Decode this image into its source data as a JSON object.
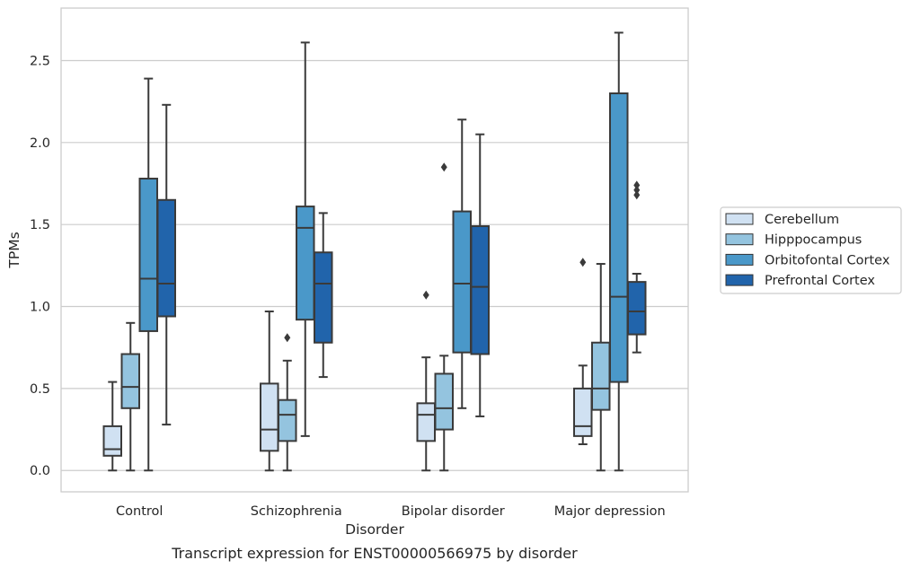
{
  "chart_data": {
    "type": "box",
    "ylabel": "TPMs",
    "xlabel": "Disorder",
    "caption": "Transcript expression for ENST00000566975 by disorder",
    "ylim": [
      -0.13,
      2.82
    ],
    "yticks": [
      "0.0",
      "0.5",
      "1.0",
      "1.5",
      "2.0",
      "2.5"
    ],
    "ytick_values": [
      0.0,
      0.5,
      1.0,
      1.5,
      2.0,
      2.5
    ],
    "grid": "horizontal",
    "legend_position": "right",
    "categories": [
      "Control",
      "Schizophrenia",
      "Bipolar disorder",
      "Major depression"
    ],
    "series": [
      {
        "name": "Cerebellum",
        "color": "#d0e1f2",
        "boxes": [
          {
            "whisker_low": 0.0,
            "q1": 0.09,
            "median": 0.13,
            "q3": 0.27,
            "whisker_high": 0.54,
            "outliers": []
          },
          {
            "whisker_low": 0.0,
            "q1": 0.12,
            "median": 0.25,
            "q3": 0.53,
            "whisker_high": 0.97,
            "outliers": []
          },
          {
            "whisker_low": 0.0,
            "q1": 0.18,
            "median": 0.34,
            "q3": 0.41,
            "whisker_high": 0.69,
            "outliers": [
              1.07
            ]
          },
          {
            "whisker_low": 0.16,
            "q1": 0.21,
            "median": 0.27,
            "q3": 0.5,
            "whisker_high": 0.64,
            "outliers": [
              1.27
            ]
          }
        ]
      },
      {
        "name": "Hipppocampus",
        "color": "#94c4df",
        "boxes": [
          {
            "whisker_low": 0.0,
            "q1": 0.38,
            "median": 0.51,
            "q3": 0.71,
            "whisker_high": 0.9,
            "outliers": []
          },
          {
            "whisker_low": 0.0,
            "q1": 0.18,
            "median": 0.34,
            "q3": 0.43,
            "whisker_high": 0.67,
            "outliers": [
              0.81
            ]
          },
          {
            "whisker_low": 0.0,
            "q1": 0.25,
            "median": 0.38,
            "q3": 0.59,
            "whisker_high": 0.7,
            "outliers": [
              1.85
            ]
          },
          {
            "whisker_low": 0.0,
            "q1": 0.37,
            "median": 0.5,
            "q3": 0.78,
            "whisker_high": 1.26,
            "outliers": []
          }
        ]
      },
      {
        "name": "Orbitofontal Cortex",
        "color": "#4a98c9",
        "boxes": [
          {
            "whisker_low": 0.0,
            "q1": 0.85,
            "median": 1.17,
            "q3": 1.78,
            "whisker_high": 2.39,
            "outliers": []
          },
          {
            "whisker_low": 0.21,
            "q1": 0.92,
            "median": 1.48,
            "q3": 1.61,
            "whisker_high": 2.61,
            "outliers": []
          },
          {
            "whisker_low": 0.38,
            "q1": 0.72,
            "median": 1.14,
            "q3": 1.58,
            "whisker_high": 2.14,
            "outliers": []
          },
          {
            "whisker_low": 0.0,
            "q1": 0.54,
            "median": 1.06,
            "q3": 2.3,
            "whisker_high": 2.67,
            "outliers": []
          }
        ]
      },
      {
        "name": "Prefrontal Cortex",
        "color": "#2164ab",
        "boxes": [
          {
            "whisker_low": 0.28,
            "q1": 0.94,
            "median": 1.14,
            "q3": 1.65,
            "whisker_high": 2.23,
            "outliers": []
          },
          {
            "whisker_low": 0.57,
            "q1": 0.78,
            "median": 1.14,
            "q3": 1.33,
            "whisker_high": 1.57,
            "outliers": []
          },
          {
            "whisker_low": 0.33,
            "q1": 0.71,
            "median": 1.12,
            "q3": 1.49,
            "whisker_high": 2.05,
            "outliers": []
          },
          {
            "whisker_low": 0.72,
            "q1": 0.83,
            "median": 0.97,
            "q3": 1.15,
            "whisker_high": 1.2,
            "outliers": [
              1.68,
              1.71,
              1.74
            ]
          }
        ]
      }
    ]
  }
}
